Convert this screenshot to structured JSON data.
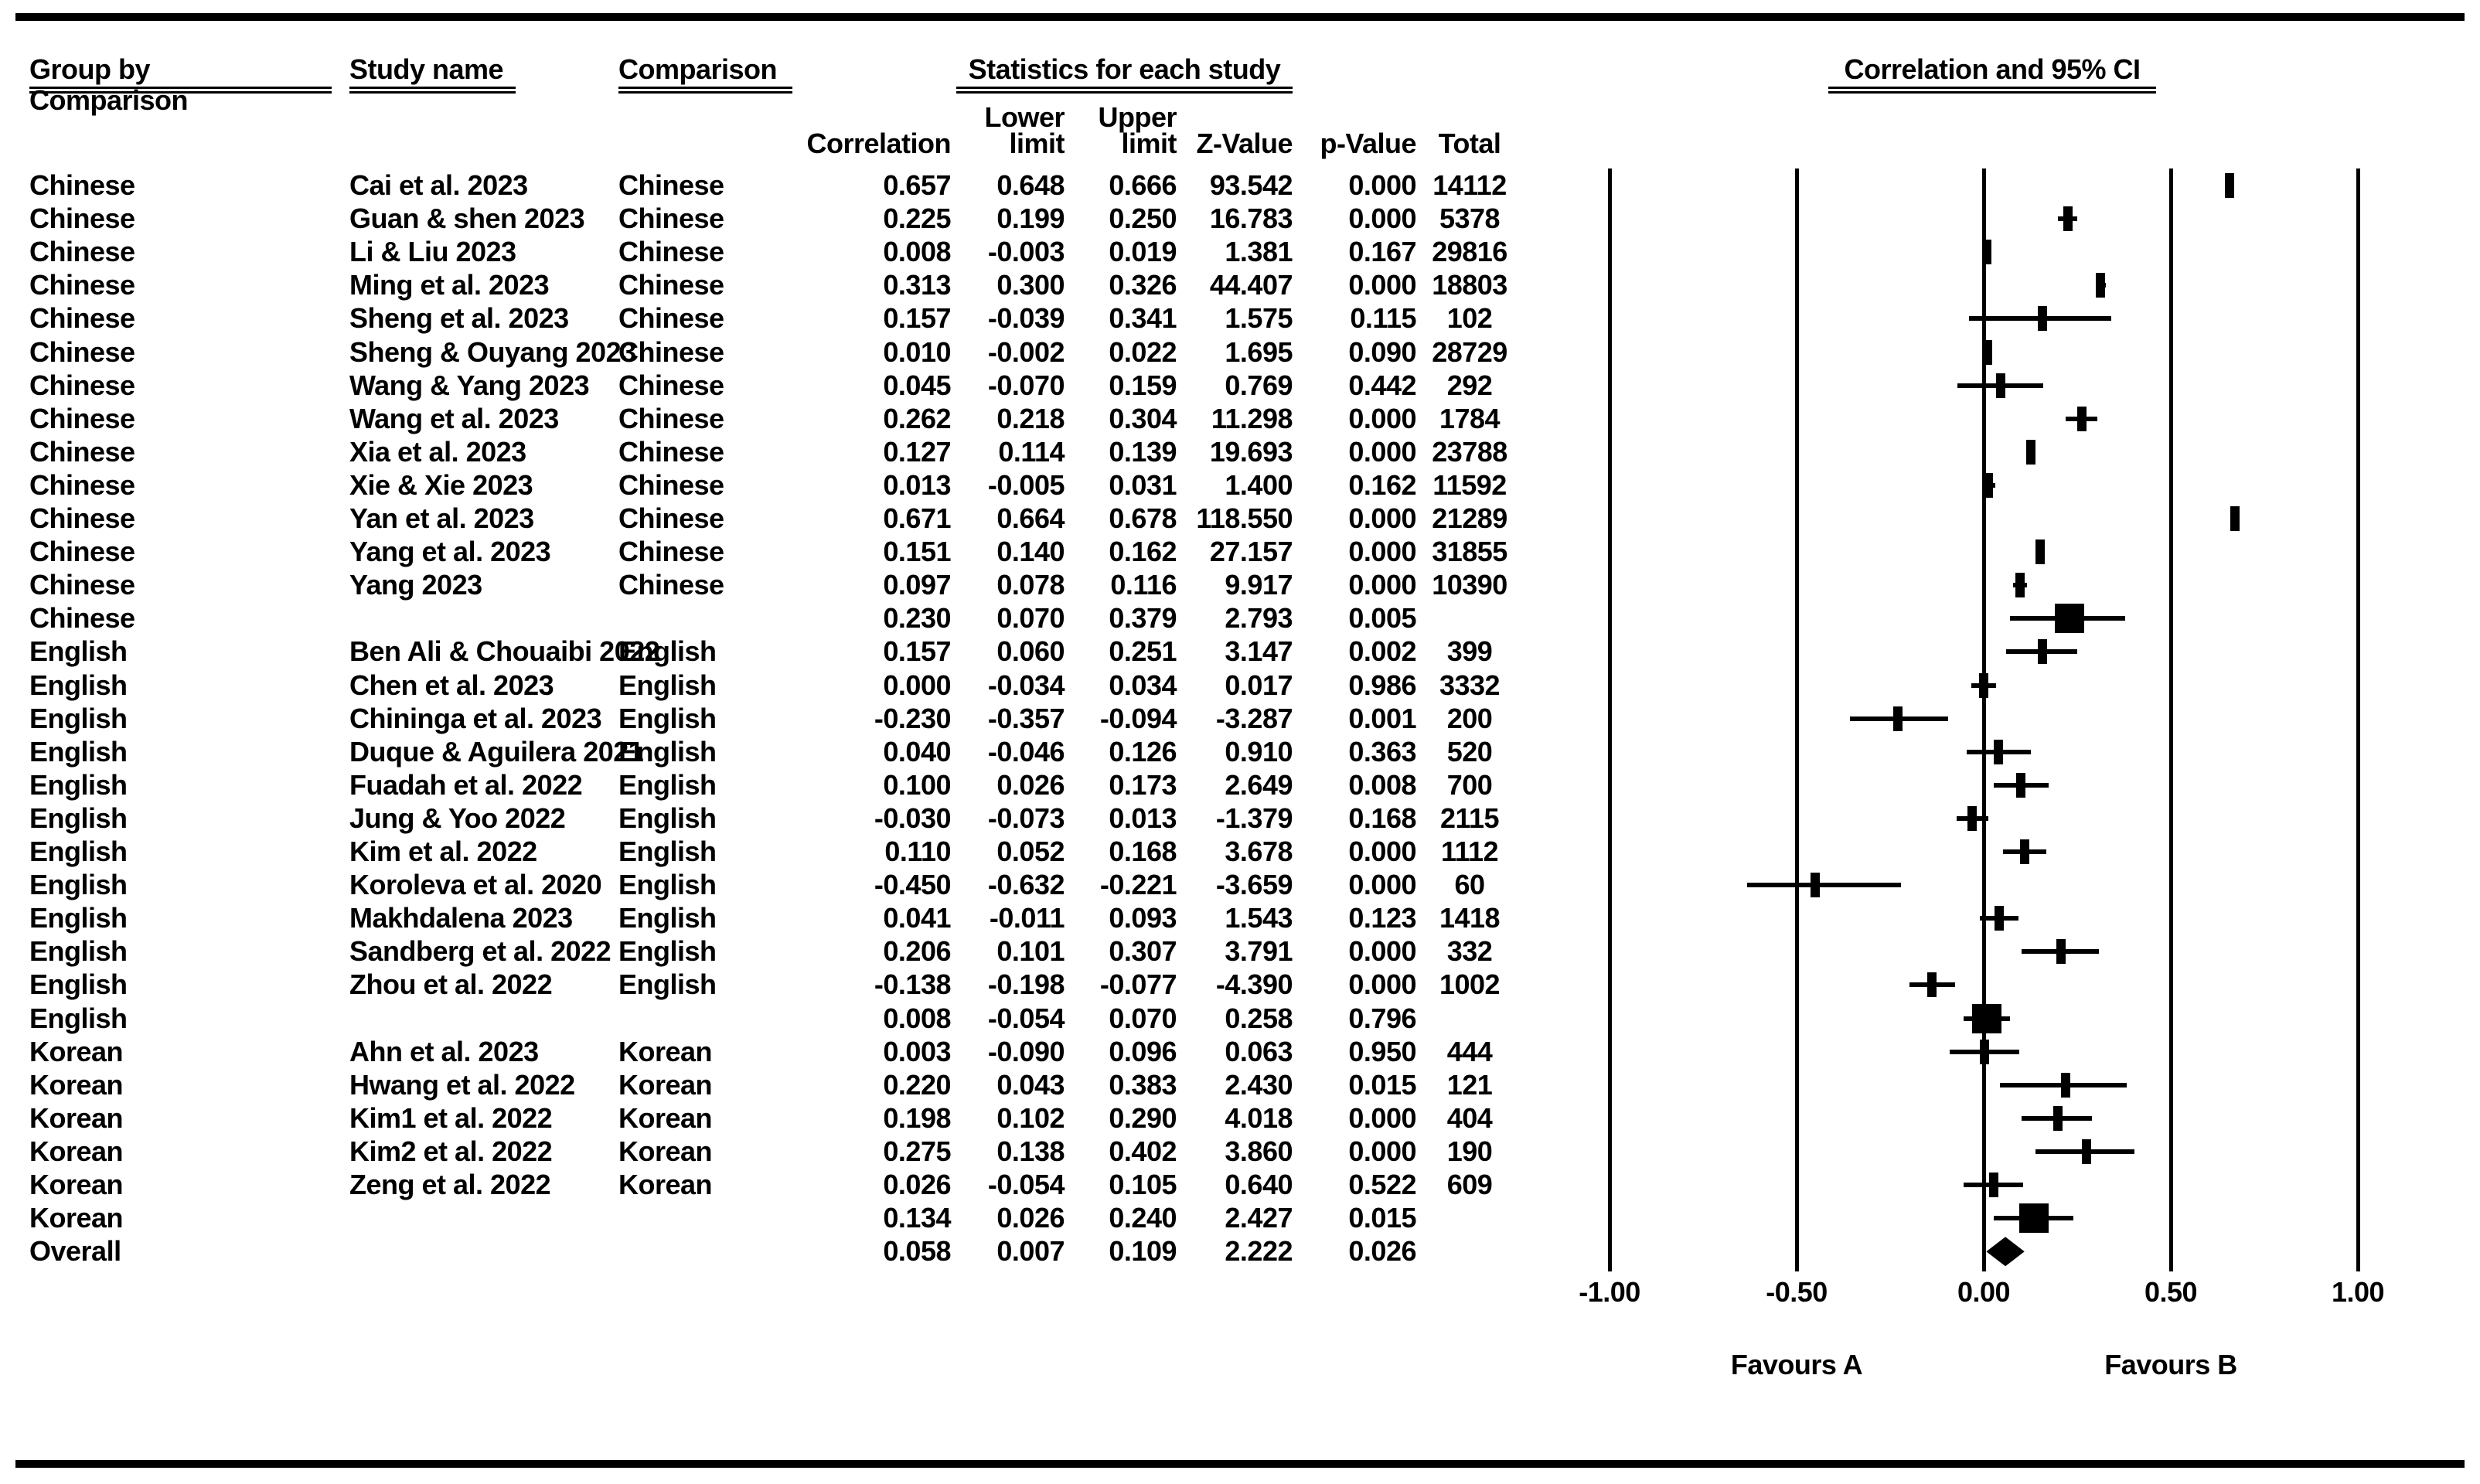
{
  "header": {
    "group_by_line1": "Group by",
    "group_by_line2": "Comparison",
    "study_name": "Study name",
    "comparison": "Comparison",
    "stats_title": "Statistics for each study",
    "plot_title": "Correlation and 95% CI",
    "columns": {
      "correlation": "Correlation",
      "lower_top": "Lower",
      "lower_bottom": "limit",
      "upper_top": "Upper",
      "upper_bottom": "limit",
      "z": "Z-Value",
      "p": "p-Value",
      "total": "Total"
    }
  },
  "colors": {
    "ink": "#000000",
    "paper": "#ffffff"
  },
  "chart_data": {
    "type": "forest",
    "title": "Correlation and 95% CI",
    "stats_title": "Statistics for each study",
    "xlim": [
      -1,
      1
    ],
    "x_ticks": [
      -1.0,
      -0.5,
      0.0,
      0.5,
      1.0
    ],
    "x_tick_labels": [
      "-1.00",
      "-0.50",
      "0.00",
      "0.50",
      "1.00"
    ],
    "x_axis_annotations": {
      "left": "Favours A",
      "right": "Favours B"
    },
    "grid": "vertical-reference-lines",
    "legend": "none",
    "groups": [
      "Chinese",
      "English",
      "Korean"
    ],
    "rows": [
      {
        "group": "Chinese",
        "study": "Cai et al. 2023",
        "comparison": "Chinese",
        "correlation": "0.657",
        "lower": "0.648",
        "upper": "0.666",
        "z": "93.542",
        "p": "0.000",
        "total": "14112",
        "kind": "study"
      },
      {
        "group": "Chinese",
        "study": "Guan & shen 2023",
        "comparison": "Chinese",
        "correlation": "0.225",
        "lower": "0.199",
        "upper": "0.250",
        "z": "16.783",
        "p": "0.000",
        "total": "5378",
        "kind": "study"
      },
      {
        "group": "Chinese",
        "study": "Li & Liu 2023",
        "comparison": "Chinese",
        "correlation": "0.008",
        "lower": "-0.003",
        "upper": "0.019",
        "z": "1.381",
        "p": "0.167",
        "total": "29816",
        "kind": "study"
      },
      {
        "group": "Chinese",
        "study": "Ming et al. 2023",
        "comparison": "Chinese",
        "correlation": "0.313",
        "lower": "0.300",
        "upper": "0.326",
        "z": "44.407",
        "p": "0.000",
        "total": "18803",
        "kind": "study"
      },
      {
        "group": "Chinese",
        "study": "Sheng et al. 2023",
        "comparison": "Chinese",
        "correlation": "0.157",
        "lower": "-0.039",
        "upper": "0.341",
        "z": "1.575",
        "p": "0.115",
        "total": "102",
        "kind": "study"
      },
      {
        "group": "Chinese",
        "study": "Sheng & Ouyang 2023",
        "comparison": "Chinese",
        "correlation": "0.010",
        "lower": "-0.002",
        "upper": "0.022",
        "z": "1.695",
        "p": "0.090",
        "total": "28729",
        "kind": "study"
      },
      {
        "group": "Chinese",
        "study": "Wang & Yang 2023",
        "comparison": "Chinese",
        "correlation": "0.045",
        "lower": "-0.070",
        "upper": "0.159",
        "z": "0.769",
        "p": "0.442",
        "total": "292",
        "kind": "study"
      },
      {
        "group": "Chinese",
        "study": "Wang et al. 2023",
        "comparison": "Chinese",
        "correlation": "0.262",
        "lower": "0.218",
        "upper": "0.304",
        "z": "11.298",
        "p": "0.000",
        "total": "1784",
        "kind": "study"
      },
      {
        "group": "Chinese",
        "study": "Xia et al. 2023",
        "comparison": "Chinese",
        "correlation": "0.127",
        "lower": "0.114",
        "upper": "0.139",
        "z": "19.693",
        "p": "0.000",
        "total": "23788",
        "kind": "study"
      },
      {
        "group": "Chinese",
        "study": "Xie & Xie 2023",
        "comparison": "Chinese",
        "correlation": "0.013",
        "lower": "-0.005",
        "upper": "0.031",
        "z": "1.400",
        "p": "0.162",
        "total": "11592",
        "kind": "study"
      },
      {
        "group": "Chinese",
        "study": "Yan et al. 2023",
        "comparison": "Chinese",
        "correlation": "0.671",
        "lower": "0.664",
        "upper": "0.678",
        "z": "118.550",
        "p": "0.000",
        "total": "21289",
        "kind": "study"
      },
      {
        "group": "Chinese",
        "study": "Yang et al. 2023",
        "comparison": "Chinese",
        "correlation": "0.151",
        "lower": "0.140",
        "upper": "0.162",
        "z": "27.157",
        "p": "0.000",
        "total": "31855",
        "kind": "study"
      },
      {
        "group": "Chinese",
        "study": "Yang 2023",
        "comparison": "Chinese",
        "correlation": "0.097",
        "lower": "0.078",
        "upper": "0.116",
        "z": "9.917",
        "p": "0.000",
        "total": "10390",
        "kind": "study"
      },
      {
        "group": "Chinese",
        "study": "",
        "comparison": "",
        "correlation": "0.230",
        "lower": "0.070",
        "upper": "0.379",
        "z": "2.793",
        "p": "0.005",
        "total": "",
        "kind": "group_summary"
      },
      {
        "group": "English",
        "study": "Ben Ali & Chouaibi 2022",
        "comparison": "English",
        "correlation": "0.157",
        "lower": "0.060",
        "upper": "0.251",
        "z": "3.147",
        "p": "0.002",
        "total": "399",
        "kind": "study"
      },
      {
        "group": "English",
        "study": "Chen et al. 2023",
        "comparison": "English",
        "correlation": "0.000",
        "lower": "-0.034",
        "upper": "0.034",
        "z": "0.017",
        "p": "0.986",
        "total": "3332",
        "kind": "study"
      },
      {
        "group": "English",
        "study": "Chininga et al. 2023",
        "comparison": "English",
        "correlation": "-0.230",
        "lower": "-0.357",
        "upper": "-0.094",
        "z": "-3.287",
        "p": "0.001",
        "total": "200",
        "kind": "study"
      },
      {
        "group": "English",
        "study": "Duque & Aguilera 2021",
        "comparison": "English",
        "correlation": "0.040",
        "lower": "-0.046",
        "upper": "0.126",
        "z": "0.910",
        "p": "0.363",
        "total": "520",
        "kind": "study"
      },
      {
        "group": "English",
        "study": "Fuadah et al. 2022",
        "comparison": "English",
        "correlation": "0.100",
        "lower": "0.026",
        "upper": "0.173",
        "z": "2.649",
        "p": "0.008",
        "total": "700",
        "kind": "study"
      },
      {
        "group": "English",
        "study": "Jung & Yoo 2022",
        "comparison": "English",
        "correlation": "-0.030",
        "lower": "-0.073",
        "upper": "0.013",
        "z": "-1.379",
        "p": "0.168",
        "total": "2115",
        "kind": "study"
      },
      {
        "group": "English",
        "study": "Kim et al. 2022",
        "comparison": "English",
        "correlation": "0.110",
        "lower": "0.052",
        "upper": "0.168",
        "z": "3.678",
        "p": "0.000",
        "total": "1112",
        "kind": "study"
      },
      {
        "group": "English",
        "study": "Koroleva et al. 2020",
        "comparison": "English",
        "correlation": "-0.450",
        "lower": "-0.632",
        "upper": "-0.221",
        "z": "-3.659",
        "p": "0.000",
        "total": "60",
        "kind": "study"
      },
      {
        "group": "English",
        "study": "Makhdalena 2023",
        "comparison": "English",
        "correlation": "0.041",
        "lower": "-0.011",
        "upper": "0.093",
        "z": "1.543",
        "p": "0.123",
        "total": "1418",
        "kind": "study"
      },
      {
        "group": "English",
        "study": "Sandberg et al. 2022",
        "comparison": "English",
        "correlation": "0.206",
        "lower": "0.101",
        "upper": "0.307",
        "z": "3.791",
        "p": "0.000",
        "total": "332",
        "kind": "study"
      },
      {
        "group": "English",
        "study": "Zhou et al. 2022",
        "comparison": "English",
        "correlation": "-0.138",
        "lower": "-0.198",
        "upper": "-0.077",
        "z": "-4.390",
        "p": "0.000",
        "total": "1002",
        "kind": "study"
      },
      {
        "group": "English",
        "study": "",
        "comparison": "",
        "correlation": "0.008",
        "lower": "-0.054",
        "upper": "0.070",
        "z": "0.258",
        "p": "0.796",
        "total": "",
        "kind": "group_summary"
      },
      {
        "group": "Korean",
        "study": "Ahn et al. 2023",
        "comparison": "Korean",
        "correlation": "0.003",
        "lower": "-0.090",
        "upper": "0.096",
        "z": "0.063",
        "p": "0.950",
        "total": "444",
        "kind": "study"
      },
      {
        "group": "Korean",
        "study": "Hwang et al. 2022",
        "comparison": "Korean",
        "correlation": "0.220",
        "lower": "0.043",
        "upper": "0.383",
        "z": "2.430",
        "p": "0.015",
        "total": "121",
        "kind": "study"
      },
      {
        "group": "Korean",
        "study": "Kim1 et al. 2022",
        "comparison": "Korean",
        "correlation": "0.198",
        "lower": "0.102",
        "upper": "0.290",
        "z": "4.018",
        "p": "0.000",
        "total": "404",
        "kind": "study"
      },
      {
        "group": "Korean",
        "study": "Kim2 et al. 2022",
        "comparison": "Korean",
        "correlation": "0.275",
        "lower": "0.138",
        "upper": "0.402",
        "z": "3.860",
        "p": "0.000",
        "total": "190",
        "kind": "study"
      },
      {
        "group": "Korean",
        "study": "Zeng et al. 2022",
        "comparison": "Korean",
        "correlation": "0.026",
        "lower": "-0.054",
        "upper": "0.105",
        "z": "0.640",
        "p": "0.522",
        "total": "609",
        "kind": "study"
      },
      {
        "group": "Korean",
        "study": "",
        "comparison": "",
        "correlation": "0.134",
        "lower": "0.026",
        "upper": "0.240",
        "z": "2.427",
        "p": "0.015",
        "total": "",
        "kind": "group_summary"
      },
      {
        "group": "Overall",
        "study": "",
        "comparison": "",
        "correlation": "0.058",
        "lower": "0.007",
        "upper": "0.109",
        "z": "2.222",
        "p": "0.026",
        "total": "",
        "kind": "overall"
      }
    ]
  }
}
